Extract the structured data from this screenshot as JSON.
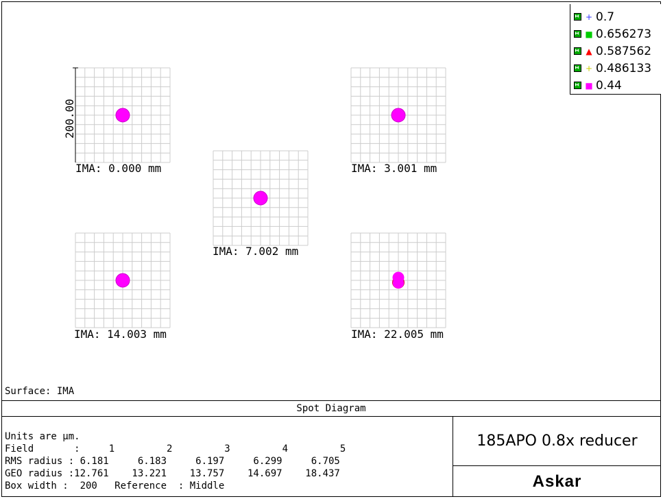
{
  "legend": [
    {
      "label": "0.7",
      "marker": "cross",
      "color": "#3333ff"
    },
    {
      "label": "0.656273",
      "marker": "square",
      "color": "#00cc00"
    },
    {
      "label": "0.587562",
      "marker": "triangle",
      "color": "#ff0000"
    },
    {
      "label": "0.486133",
      "marker": "plus",
      "color": "#cccc00"
    },
    {
      "label": "0.44",
      "marker": "square",
      "color": "#ff00ff"
    }
  ],
  "scale_label": "200.00",
  "spots": [
    {
      "label": "IMA: 0.000 mm"
    },
    {
      "label": "IMA: 3.001 mm"
    },
    {
      "label": "IMA: 7.002 mm"
    },
    {
      "label": "IMA: 14.003 mm"
    },
    {
      "label": "IMA: 22.005 mm"
    }
  ],
  "surface": "Surface: IMA",
  "diagram_title": "Spot Diagram",
  "info": {
    "units": "Units are µm.",
    "field_label": "Field",
    "fields": [
      "1",
      "2",
      "3",
      "4",
      "5"
    ],
    "rms_label": "RMS radius :",
    "rms": [
      "6.181",
      "6.183",
      "6.197",
      "6.299",
      "6.705"
    ],
    "geo_label": "GEO radius :",
    "geo": [
      "12.761",
      "13.221",
      "13.757",
      "14.697",
      "18.437"
    ],
    "box_width_label": "Box width :",
    "box_width": "200",
    "reference_label": "Reference",
    "reference": ": Middle"
  },
  "product_name": "185APO 0.8x reducer",
  "brand": "Askar",
  "colors": {
    "spot": "#ff00ff",
    "spot_edge": "#cc00cc",
    "grid": "#cccccc"
  }
}
